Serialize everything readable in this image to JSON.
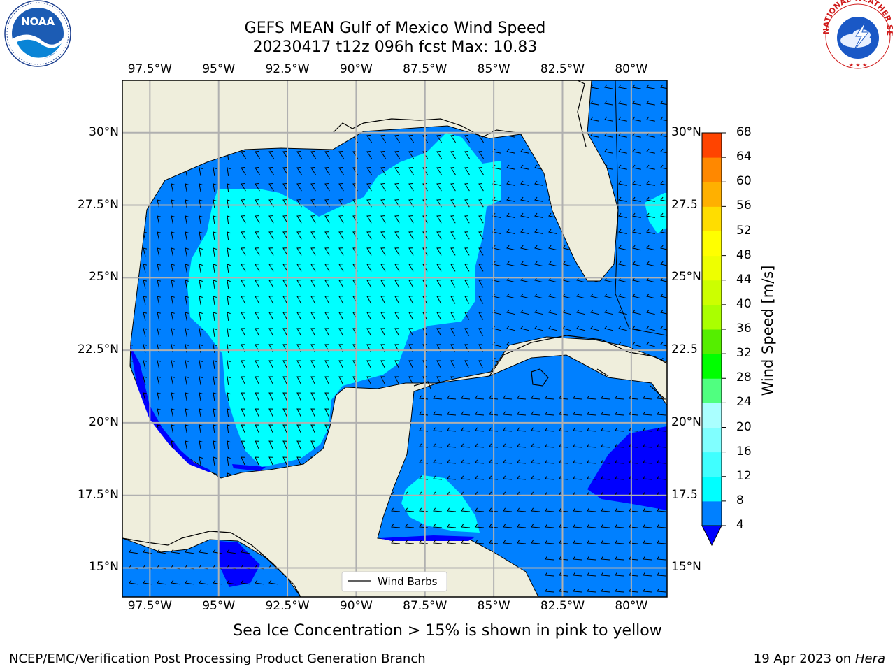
{
  "title_line1": "GEFS MEAN Gulf of Mexico Wind Speed",
  "title_line2": "20230417 t12z 096h fcst   Max: 10.83",
  "map": {
    "lon_min": -98.5,
    "lon_max": -78.7,
    "lat_min": 14.0,
    "lat_max": 31.8,
    "lon_ticks": [
      -97.5,
      -95,
      -92.5,
      -90,
      -87.5,
      -85,
      -82.5,
      -80
    ],
    "lon_labels": [
      "97.5°W",
      "95°W",
      "92.5°W",
      "90°W",
      "87.5°W",
      "85°W",
      "82.5°W",
      "80°W"
    ],
    "lat_ticks": [
      30,
      27.5,
      25,
      22.5,
      20,
      17.5,
      15
    ],
    "lat_labels_left": [
      "30°N",
      "27.5°N",
      "25°N",
      "22.5°N",
      "20°N",
      "17.5°N",
      "15°N"
    ],
    "lat_labels_right": [
      "30°N",
      "27.5",
      "25°N",
      "22.5",
      "20°N",
      "17.5",
      "15°N"
    ],
    "grid": true,
    "land_color": "#efeedc",
    "legend_label": "Wind Barbs",
    "legend_placement": "bottom-center"
  },
  "colorbar": {
    "title": "Wind Speed [m/s]",
    "levels": [
      4,
      8,
      12,
      16,
      20,
      24,
      28,
      32,
      36,
      40,
      44,
      48,
      52,
      56,
      60,
      64,
      68
    ],
    "level_labels": [
      "4",
      "8",
      "12",
      "16",
      "20",
      "24",
      "28",
      "32",
      "36",
      "40",
      "44",
      "48",
      "52",
      "56",
      "60",
      "64",
      "68"
    ],
    "colors": [
      "#0080ff",
      "#00ffff",
      "#40ffff",
      "#80ffff",
      "#aaffff",
      "#50ff80",
      "#00ff00",
      "#55ee00",
      "#aaff00",
      "#ccff00",
      "#eeff00",
      "#ffff00",
      "#ffdd00",
      "#ffb000",
      "#ff8800",
      "#ff4400",
      "#ff2000",
      "#ff0000"
    ],
    "under_color": "#0000ff",
    "extend": "min"
  },
  "wind_field": {
    "wind_speed_max": 10.83,
    "zone_colors": {
      "low": "#0000ff",
      "mid": "#0080ff",
      "high": "#00ffff"
    }
  },
  "note": "Sea Ice Concentration > 15% is shown in pink to yellow",
  "footer_left": "NCEP/EMC/Verification Post Processing Product Generation Branch",
  "footer_date": "19 Apr 2023 on ",
  "footer_host": "Hera",
  "logos": {
    "noaa": "NOAA",
    "nws": "NATIONAL WEATHER SERVICE"
  }
}
